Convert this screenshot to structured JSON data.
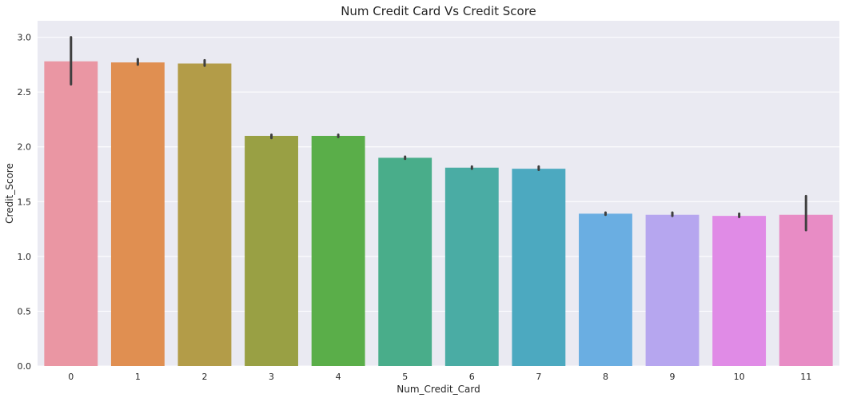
{
  "chart_data": {
    "type": "bar",
    "title": "Num Credit Card Vs Credit Score",
    "xlabel": "Num_Credit_Card",
    "ylabel": "Credit_Score",
    "categories": [
      "0",
      "1",
      "2",
      "3",
      "4",
      "5",
      "6",
      "7",
      "8",
      "9",
      "10",
      "11"
    ],
    "values": [
      2.78,
      2.77,
      2.76,
      2.1,
      2.1,
      1.9,
      1.81,
      1.8,
      1.39,
      1.38,
      1.37,
      1.38
    ],
    "error_bars": [
      [
        2.57,
        3.0
      ],
      [
        2.75,
        2.8
      ],
      [
        2.74,
        2.79
      ],
      [
        2.08,
        2.11
      ],
      [
        2.09,
        2.11
      ],
      [
        1.89,
        1.91
      ],
      [
        1.8,
        1.82
      ],
      [
        1.79,
        1.82
      ],
      [
        1.38,
        1.4
      ],
      [
        1.37,
        1.4
      ],
      [
        1.36,
        1.39
      ],
      [
        1.24,
        1.55
      ]
    ],
    "colors": [
      "#ea96a3",
      "#e08f51",
      "#b39c48",
      "#99a044",
      "#5aae49",
      "#49ad8a",
      "#4aaca4",
      "#4ca9c0",
      "#6aaee2",
      "#b6a6ef",
      "#e08be6",
      "#e88cc5"
    ],
    "ylim": [
      0,
      3.15
    ],
    "yticks": [
      "0.0",
      "0.5",
      "1.0",
      "1.5",
      "2.0",
      "2.5",
      "3.0"
    ],
    "grid": true,
    "background": "#eaeaf2",
    "grid_color": "#ffffff",
    "errorbar_color": "#3f3f3f"
  }
}
